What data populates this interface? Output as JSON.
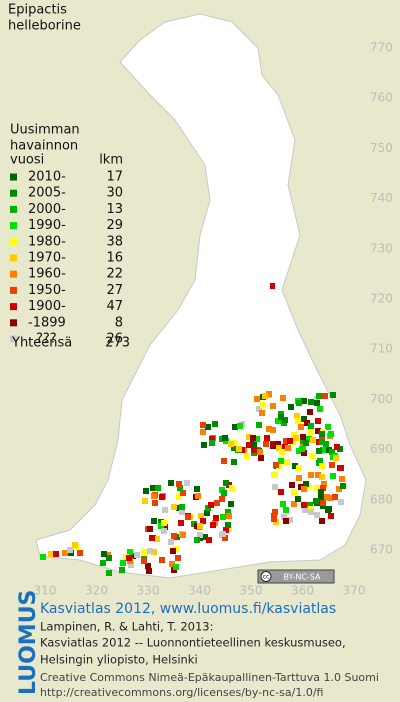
{
  "title": [
    "Epipactis",
    "helleborine"
  ],
  "legend": {
    "heading": [
      "Uusimman",
      "havainnon",
      "vuosi"
    ],
    "count_heading": "lkm",
    "entries": [
      {
        "label": "2010-",
        "count": 17,
        "color": "#006400"
      },
      {
        "label": "2005-",
        "count": 30,
        "color": "#008a00"
      },
      {
        "label": "2000-",
        "count": 13,
        "color": "#00b000"
      },
      {
        "label": "1990-",
        "count": 29,
        "color": "#00e000"
      },
      {
        "label": "1980-",
        "count": 38,
        "color": "#ffff00"
      },
      {
        "label": "1970-",
        "count": 16,
        "color": "#ffcc00"
      },
      {
        "label": "1960-",
        "count": 22,
        "color": "#ff8000"
      },
      {
        "label": "1950-",
        "count": 27,
        "color": "#e84000"
      },
      {
        "label": "1900-",
        "count": 47,
        "color": "#d00000"
      },
      {
        "label": "-1899",
        "count": 8,
        "color": "#8b0000"
      },
      {
        "label": "???",
        "count": 26,
        "color": "#c8c8c8"
      }
    ],
    "total_label": "Yhteensä",
    "total": 273
  },
  "map": {
    "y_labels": [
      770,
      760,
      750,
      740,
      730,
      720,
      710,
      700,
      690,
      680,
      670
    ],
    "x_labels": [
      310,
      320,
      330,
      340,
      350,
      360,
      370
    ],
    "badge": [
      "cc",
      "BY-NC-SA"
    ]
  },
  "footer": {
    "logo": "LUOMUS",
    "link": "Kasviatlas 2012, www.luomus.fi/kasviatlas",
    "citation": [
      "Lampinen, R. & Lahti, T. 2013:",
      "Kasviatlas 2012 -- Luonnontieteellinen keskusmuseo,",
      "Helsingin yliopisto, Helsinki"
    ],
    "license": [
      "Creative Commons Nimeä-Epäkaupallinen-Tarttuva 1.0 Suomi",
      "http://creativecommons.org/licenses/by-nc-sa/1.0/fi"
    ]
  }
}
